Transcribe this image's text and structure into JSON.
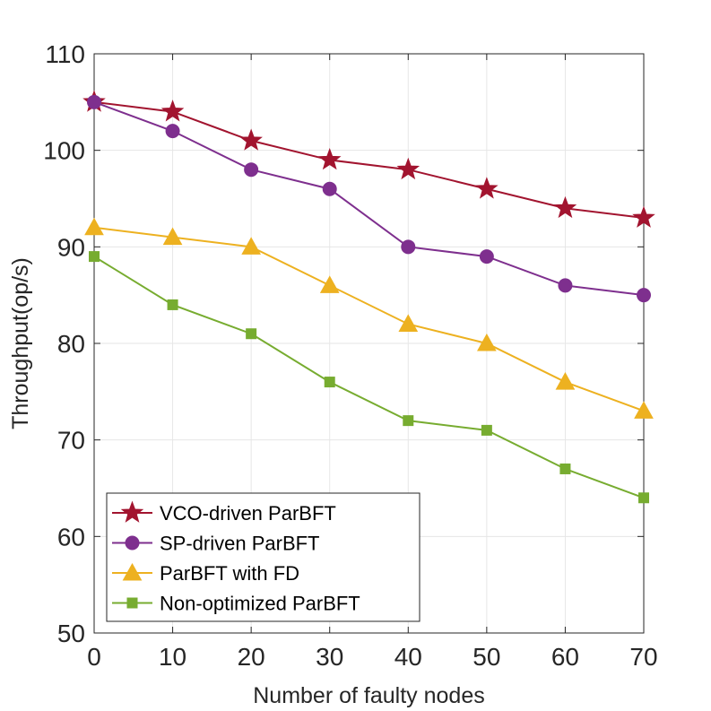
{
  "chart_data": {
    "type": "line",
    "title": "",
    "xlabel": "Number of faulty nodes",
    "ylabel": "Throughput(op/s)",
    "x": [
      0,
      10,
      20,
      30,
      40,
      50,
      60,
      70
    ],
    "xlim": [
      0,
      70
    ],
    "ylim": [
      50,
      110
    ],
    "xticks": [
      "0",
      "10",
      "20",
      "30",
      "40",
      "50",
      "60",
      "70"
    ],
    "yticks": [
      "50",
      "60",
      "70",
      "80",
      "90",
      "100",
      "110"
    ],
    "grid": true,
    "legend_position": "bottom-left",
    "series": [
      {
        "name": "VCO-driven ParBFT",
        "color": "#A2142F",
        "marker": "star",
        "values": [
          105,
          104,
          101,
          99,
          98,
          96,
          94,
          93
        ]
      },
      {
        "name": "SP-driven ParBFT",
        "color": "#7E2F8E",
        "marker": "circle",
        "values": [
          105,
          102,
          98,
          96,
          90,
          89,
          86,
          85
        ]
      },
      {
        "name": "ParBFT with FD",
        "color": "#EDB120",
        "marker": "triangle",
        "values": [
          92,
          91,
          90,
          86,
          82,
          80,
          76,
          73
        ]
      },
      {
        "name": "Non-optimized ParBFT",
        "color": "#77AC30",
        "marker": "square",
        "values": [
          89,
          84,
          81,
          76,
          72,
          71,
          67,
          64
        ]
      }
    ]
  }
}
